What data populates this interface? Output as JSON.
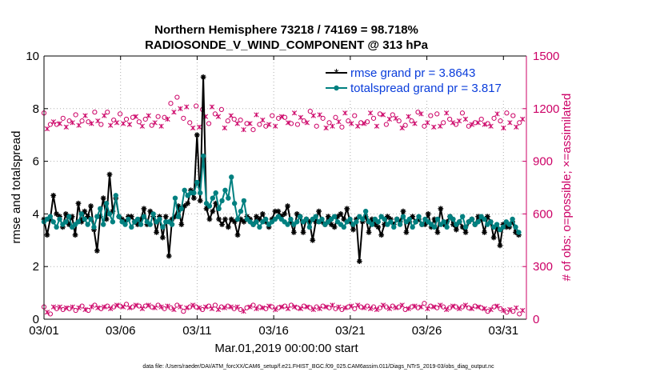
{
  "chart_data": {
    "type": "line",
    "title_line1": "Northern Hemisphere 73218 / 74169 = 98.718%",
    "title_line2": "RADIOSONDE_V_WIND_COMPONENT @ 313 hPa",
    "xlabel": "Mar.01,2019 00:00:00 start",
    "ylabel_left": "rmse and totalspread",
    "ylabel_right": "# of obs: o=possible; ×=assimilated",
    "footnote": "data file: /Users/raeder/DAI/ATM_forcXX/CAM6_setup/f.e21.FHIST_BGC.f09_025.CAM6assim.011/Diags_NTrS_2019-03/obs_diag_output.nc",
    "x_range": [
      1,
      32.5
    ],
    "x_ticks": [
      1,
      6,
      11,
      16,
      21,
      26,
      31
    ],
    "x_tick_labels": [
      "03/01",
      "03/06",
      "03/11",
      "03/16",
      "03/21",
      "03/26",
      "03/31"
    ],
    "ylim_left": [
      0,
      10
    ],
    "y_ticks_left": [
      "0",
      "2",
      "4",
      "6",
      "8",
      "10"
    ],
    "ylim_right": [
      0,
      1500
    ],
    "y_ticks_right": [
      "0",
      "300",
      "600",
      "900",
      "1200",
      "1500"
    ],
    "colors": {
      "rmse": "#000000",
      "spread": "#008080",
      "obs": "#cc0066",
      "axis": "#000000"
    },
    "legend": [
      {
        "name": "rmse grand pr = 3.8643",
        "color": "#0a3ddb"
      },
      {
        "name": "totalspread grand pr = 3.817",
        "color": "#0a3ddb"
      }
    ],
    "series": [
      {
        "name": "rmse",
        "values": [
          3.8,
          3.2,
          3.8,
          4.7,
          4.0,
          3.9,
          3.5,
          4.0,
          3.6,
          3.9,
          3.2,
          4.4,
          3.7,
          4.1,
          3.9,
          4.3,
          3.4,
          2.6,
          3.9,
          4.6,
          3.8,
          5.5,
          4.1,
          4.6,
          3.9,
          3.8,
          3.7,
          3.9,
          3.9,
          3.7,
          3.6,
          3.8,
          4.2,
          3.6,
          4.1,
          3.9,
          3.3,
          3.9,
          3.1,
          3.9,
          2.4,
          3.8,
          3.9,
          4.3,
          3.6,
          4.3,
          4.4,
          4.9,
          4.6,
          7.0,
          4.5,
          9.2,
          4.2,
          3.8,
          4.1,
          4.4,
          3.8,
          3.6,
          3.8,
          3.5,
          3.8,
          3.7,
          3.2,
          3.8,
          3.7,
          3.9,
          3.8,
          3.6,
          3.9,
          3.8,
          4.0,
          3.7,
          3.5,
          3.8,
          4.1,
          4.1,
          3.9,
          4.0,
          4.3,
          3.7,
          3.3,
          4.0,
          3.9,
          3.3,
          3.8,
          3.7,
          3.0,
          3.7,
          4.1,
          3.7,
          3.6,
          3.9,
          3.6,
          3.5,
          3.9,
          4.0,
          3.8,
          4.2,
          3.7,
          3.4,
          3.8,
          2.2,
          3.7,
          3.9,
          3.3,
          3.8,
          3.6,
          3.5,
          3.2,
          3.6,
          3.9,
          3.8,
          3.6,
          3.8,
          3.7,
          4.1,
          3.3,
          3.7,
          3.9,
          3.7,
          3.8,
          3.6,
          3.6,
          4.0,
          3.5,
          3.8,
          3.3,
          4.2,
          3.6,
          3.7,
          3.9,
          3.6,
          3.4,
          3.7,
          3.5,
          3.3,
          3.7,
          3.8,
          3.6,
          3.9,
          3.8,
          3.3,
          3.9,
          3.7,
          3.1,
          3.5,
          2.8,
          3.6,
          3.5,
          3.5,
          3.7,
          3.3,
          3.2
        ]
      },
      {
        "name": "totalspread",
        "values": [
          3.7,
          3.8,
          3.9,
          3.7,
          3.5,
          3.8,
          3.6,
          3.7,
          3.9,
          3.5,
          3.6,
          3.7,
          4.0,
          3.8,
          3.6,
          3.8,
          3.5,
          3.9,
          4.2,
          3.6,
          4.4,
          4.0,
          3.7,
          4.7,
          3.9,
          3.7,
          3.6,
          3.8,
          3.5,
          3.7,
          3.8,
          3.6,
          3.9,
          3.7,
          3.6,
          4.0,
          3.7,
          3.8,
          3.5,
          3.7,
          3.7,
          3.6,
          4.6,
          3.9,
          4.2,
          4.9,
          4.7,
          4.8,
          4.8,
          5.2,
          4.8,
          6.2,
          4.4,
          4.3,
          4.6,
          4.8,
          4.2,
          4.5,
          4.9,
          4.6,
          5.4,
          4.4,
          3.8,
          4.1,
          4.5,
          3.8,
          3.7,
          3.6,
          3.7,
          3.5,
          3.7,
          3.8,
          3.6,
          3.7,
          3.8,
          3.9,
          3.8,
          3.7,
          3.6,
          3.8,
          3.6,
          3.7,
          3.9,
          3.7,
          3.8,
          3.5,
          3.8,
          3.9,
          3.7,
          3.8,
          3.6,
          3.7,
          3.8,
          3.9,
          3.7,
          3.6,
          3.5,
          3.7,
          3.8,
          3.6,
          3.7,
          3.9,
          3.8,
          4.1,
          3.7,
          3.6,
          3.8,
          3.7,
          3.9,
          3.8,
          3.6,
          3.7,
          3.5,
          3.8,
          3.6,
          3.9,
          3.7,
          3.8,
          3.5,
          3.7,
          3.9,
          3.6,
          3.8,
          3.7,
          3.6,
          3.5,
          3.8,
          3.6,
          3.7,
          3.5,
          3.9,
          3.8,
          3.6,
          3.7,
          3.9,
          3.5,
          3.7,
          3.8,
          3.6,
          3.7,
          3.9,
          3.8,
          3.6,
          3.7,
          3.5,
          3.6,
          3.4,
          3.5,
          3.7,
          3.6,
          3.8,
          3.5,
          3.3
        ]
      },
      {
        "name": "obs_possible",
        "values": [
          1175,
          1085,
          1110,
          1125,
          1110,
          1115,
          1145,
          1095,
          1130,
          1120,
          1165,
          1105,
          1130,
          1160,
          1125,
          1115,
          1180,
          1130,
          1110,
          1160,
          1180,
          1105,
          1135,
          1120,
          1170,
          1115,
          1140,
          1110,
          1150,
          1155,
          1125,
          1100,
          1140,
          1160,
          1105,
          1120,
          1155,
          1100,
          1150,
          1140,
          1230,
          1180,
          1265,
          1200,
          1145,
          1210,
          1120,
          1090,
          1215,
          1095,
          1195,
          1155,
          1115,
          1210,
          1170,
          1155,
          1195,
          1090,
          1130,
          1160,
          1140,
          1115,
          1135,
          1080,
          1115,
          1115,
          1080,
          1165,
          1110,
          1135,
          1100,
          1110,
          1160,
          1100,
          1145,
          1155,
          1150,
          1120,
          1115,
          1175,
          1110,
          1150,
          1130,
          1120,
          1185,
          1160,
          1100,
          1165,
          1145,
          1090,
          1120,
          1100,
          1150,
          1125,
          1095,
          1175,
          1130,
          1115,
          1160,
          1100,
          1120,
          1115,
          1125,
          1175,
          1145,
          1100,
          1170,
          1165,
          1110,
          1140,
          1165,
          1145,
          1130,
          1090,
          1105,
          1155,
          1130,
          1115,
          1180,
          1170,
          1100,
          1120,
          1160,
          1095,
          1170,
          1100,
          1120,
          1175,
          1140,
          1120,
          1110,
          1130,
          1175,
          1140,
          1100,
          1110,
          1120,
          1120,
          1140,
          1110,
          1115,
          1100,
          1145,
          1170,
          1130,
          1090,
          1175,
          1120,
          1160,
          1095,
          1120,
          1140
        ]
      },
      {
        "name": "obs_possible_low",
        "values": [
          70,
          40,
          30,
          70,
          60,
          70,
          55,
          65,
          60,
          70,
          50,
          65,
          75,
          55,
          50,
          70,
          80,
          65,
          60,
          70,
          75,
          60,
          70,
          80,
          75,
          70,
          85,
          65,
          70,
          80,
          75,
          60,
          75,
          80,
          70,
          65,
          80,
          70,
          60,
          75,
          65,
          55,
          80,
          70,
          45,
          65,
          70,
          80,
          70,
          65,
          55,
          70,
          75,
          60,
          80,
          55,
          70,
          65,
          75,
          70,
          60,
          70,
          55,
          45,
          65,
          70,
          80,
          60,
          70,
          65,
          60,
          75,
          70,
          55,
          65,
          70,
          75,
          60,
          80,
          70,
          65,
          60,
          75,
          70,
          65,
          55,
          70,
          60,
          75,
          70,
          65,
          80,
          60,
          70,
          55,
          65,
          70,
          75,
          60,
          80,
          70,
          65,
          75,
          60,
          70,
          55,
          65,
          80,
          70,
          60,
          75,
          65,
          70,
          80,
          55,
          60,
          70,
          75,
          65,
          70,
          90,
          60,
          75,
          70,
          65,
          80,
          70,
          55,
          65,
          75,
          70,
          60,
          70,
          80,
          65,
          60,
          75,
          70,
          65,
          60,
          45,
          55,
          70,
          75,
          60,
          50,
          40,
          55,
          45,
          65,
          30,
          50
        ]
      }
    ]
  }
}
